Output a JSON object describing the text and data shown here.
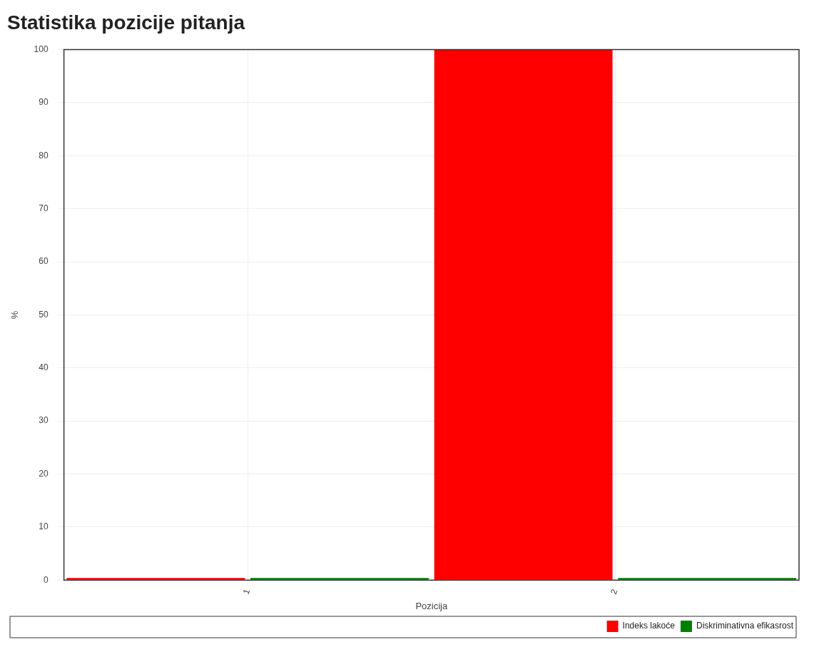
{
  "chart_data": {
    "type": "bar",
    "title": "Statistika pozicije pitanja",
    "xlabel": "Pozicija",
    "ylabel": "%",
    "categories": [
      "1",
      "2"
    ],
    "series": [
      {
        "name": "Indeks lakoće",
        "color": "#ff0000",
        "values": [
          0,
          100
        ]
      },
      {
        "name": "Diskriminativna efikasrost",
        "color": "#008000",
        "values": [
          0,
          0
        ]
      }
    ],
    "ylim": [
      0,
      100
    ],
    "yticks": [
      0,
      10,
      20,
      30,
      40,
      50,
      60,
      70,
      80,
      90,
      100
    ],
    "grid": true,
    "legend": "bottom right"
  }
}
